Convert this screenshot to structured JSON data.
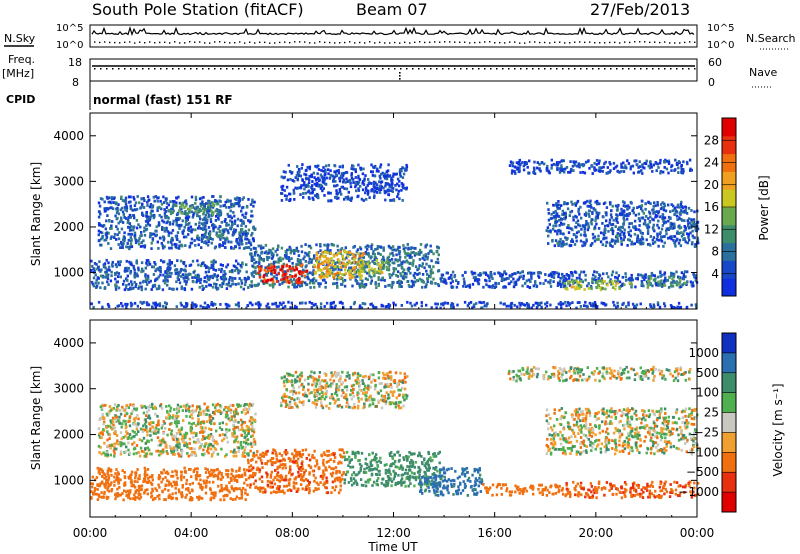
{
  "header": {
    "station": "South Pole Station (fitACF)",
    "beam": "Beam 07",
    "date": "27/Feb/2013"
  },
  "top_panels": {
    "nsky_label": "N.Sky",
    "nsearch_label": "N.Search",
    "freq_label": "Freq.",
    "freq_unit": "[MHz]",
    "nave_label": "Nave",
    "cpid_label": "CPID",
    "cpid_value": "normal (fast) 151 RF",
    "noise_ticks": [
      "10^5",
      "10^0"
    ],
    "freq_ticks": [
      "18",
      "8"
    ],
    "nave_ticks": [
      "60",
      "0"
    ]
  },
  "colors": {
    "power_scale": [
      "#1030e0",
      "#1848c8",
      "#2a6f9e",
      "#3d8c6a",
      "#6aa84f",
      "#c8c820",
      "#f0a020",
      "#f07010",
      "#e83010",
      "#e00000"
    ],
    "velocity_scale": [
      "#1030c0",
      "#2a6fb0",
      "#3d8c6a",
      "#50b050",
      "#c8c8c0",
      "#f0a030",
      "#f07010",
      "#e83010",
      "#e00000"
    ]
  },
  "chart_data": [
    {
      "type": "heatmap",
      "title": "",
      "xlabel": "",
      "ylabel": "Slant Range [km]",
      "colorbar_label": "Power [dB]",
      "colorbar_ticks": [
        4,
        8,
        12,
        16,
        20,
        24,
        28
      ],
      "colorbar_range": [
        0,
        32
      ],
      "ylim": [
        200,
        4500
      ],
      "yticks": [
        1000,
        2000,
        3000,
        4000
      ],
      "xlim": [
        0,
        24
      ],
      "xticks": [
        "00:00",
        "04:00",
        "08:00",
        "12:00",
        "16:00",
        "20:00",
        "00:00"
      ],
      "blobs": [
        {
          "t0": 0.3,
          "t1": 6.5,
          "r0": 1550,
          "r1": 2700,
          "level": 6
        },
        {
          "t0": 3.0,
          "t1": 5.2,
          "r0": 2300,
          "r1": 2550,
          "level": 12
        },
        {
          "t0": 4.5,
          "t1": 5.2,
          "r0": 1750,
          "r1": 1900,
          "level": 12
        },
        {
          "t0": 0.0,
          "t1": 6.2,
          "r0": 650,
          "r1": 1300,
          "level": 6
        },
        {
          "t0": 6.2,
          "t1": 13.8,
          "r0": 700,
          "r1": 1650,
          "level": 8
        },
        {
          "t0": 6.6,
          "t1": 8.6,
          "r0": 800,
          "r1": 1200,
          "level": 28
        },
        {
          "t0": 8.8,
          "t1": 10.8,
          "r0": 900,
          "r1": 1500,
          "level": 20
        },
        {
          "t0": 10.5,
          "t1": 12.0,
          "r0": 1000,
          "r1": 1300,
          "level": 16
        },
        {
          "t0": 13.8,
          "t1": 24.0,
          "r0": 700,
          "r1": 1050,
          "level": 5
        },
        {
          "t0": 18.7,
          "t1": 21.5,
          "r0": 650,
          "r1": 850,
          "level": 16
        },
        {
          "t0": 22.0,
          "t1": 23.5,
          "r0": 700,
          "r1": 950,
          "level": 12
        },
        {
          "t0": 18.0,
          "t1": 24.0,
          "r0": 1600,
          "r1": 2600,
          "level": 6
        },
        {
          "t0": 7.5,
          "t1": 12.5,
          "r0": 2600,
          "r1": 3400,
          "level": 4
        },
        {
          "t0": 16.5,
          "t1": 23.8,
          "r0": 3200,
          "r1": 3500,
          "level": 4
        },
        {
          "t0": 0.0,
          "t1": 24.0,
          "r0": 250,
          "r1": 380,
          "level": 4
        }
      ]
    },
    {
      "type": "heatmap",
      "title": "",
      "xlabel": "Time UT",
      "ylabel": "Slant Range [km]",
      "colorbar_label": "Velocity [m s⁻¹]",
      "colorbar_ticks": [
        "1000",
        "500",
        "100",
        "25",
        "−25",
        "−100",
        "−500",
        "−1000"
      ],
      "ylim": [
        200,
        4500
      ],
      "yticks": [
        1000,
        2000,
        3000,
        4000
      ],
      "xlim": [
        0,
        24
      ],
      "xticks": [
        "00:00",
        "04:00",
        "08:00",
        "12:00",
        "16:00",
        "20:00",
        "00:00"
      ],
      "blobs": [
        {
          "t0": 0.3,
          "t1": 6.5,
          "r0": 1550,
          "r1": 2700,
          "vel": 0
        },
        {
          "t0": 0.0,
          "t1": 6.2,
          "r0": 600,
          "r1": 1300,
          "vel": -300
        },
        {
          "t0": 6.2,
          "t1": 10.0,
          "r0": 750,
          "r1": 1700,
          "vel": -400
        },
        {
          "t0": 10.0,
          "t1": 13.8,
          "r0": 900,
          "r1": 1650,
          "vel": 200
        },
        {
          "t0": 13.0,
          "t1": 15.5,
          "r0": 700,
          "r1": 1300,
          "vel": 600
        },
        {
          "t0": 15.5,
          "t1": 18.7,
          "r0": 700,
          "r1": 950,
          "vel": -300
        },
        {
          "t0": 18.7,
          "t1": 24.0,
          "r0": 650,
          "r1": 1000,
          "vel": -450
        },
        {
          "t0": 18.0,
          "t1": 24.0,
          "r0": 1600,
          "r1": 2600,
          "vel": 0
        },
        {
          "t0": 7.5,
          "t1": 12.5,
          "r0": 2600,
          "r1": 3400,
          "vel": 0
        },
        {
          "t0": 16.5,
          "t1": 23.8,
          "r0": 3200,
          "r1": 3500,
          "vel": 0
        }
      ]
    }
  ]
}
